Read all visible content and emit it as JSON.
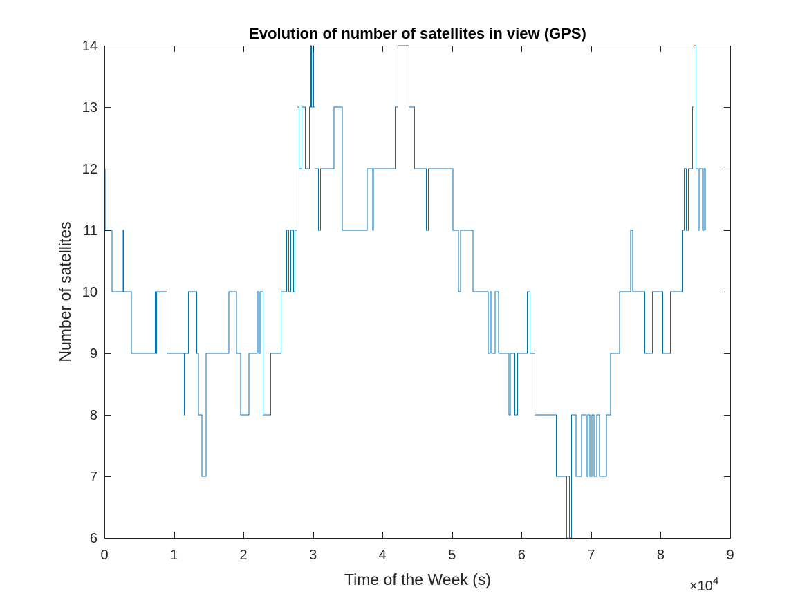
{
  "chart_data": {
    "type": "line",
    "title": "Evolution of number of satellites in view (GPS)",
    "xlabel": "Time of the Week (s)",
    "ylabel": "Number of satellites",
    "x_multiplier_label": "×10",
    "x_multiplier_exponent": "4",
    "xlim": [
      0,
      90000
    ],
    "ylim": [
      6,
      14
    ],
    "x_tick_values": [
      0,
      10000,
      20000,
      30000,
      40000,
      50000,
      60000,
      70000,
      80000,
      90000
    ],
    "x_tick_labels": [
      "0",
      "1",
      "2",
      "3",
      "4",
      "5",
      "6",
      "7",
      "8",
      "9"
    ],
    "y_tick_values": [
      6,
      7,
      8,
      9,
      10,
      11,
      12,
      13,
      14
    ],
    "y_tick_labels": [
      "6",
      "7",
      "8",
      "9",
      "10",
      "11",
      "12",
      "13",
      "14"
    ],
    "grid": false,
    "box": true,
    "line_color": "#0072bd",
    "series": [
      {
        "values_format": "step [time_s, satellites]",
        "points": [
          [
            0,
            12
          ],
          [
            80,
            11
          ],
          [
            1100,
            10
          ],
          [
            2700,
            11
          ],
          [
            2800,
            10
          ],
          [
            3200,
            10
          ],
          [
            3900,
            9
          ],
          [
            7300,
            10
          ],
          [
            7400,
            9
          ],
          [
            7500,
            10
          ],
          [
            9000,
            9
          ],
          [
            11500,
            8
          ],
          [
            11600,
            9
          ],
          [
            12100,
            10
          ],
          [
            13300,
            9
          ],
          [
            13500,
            8
          ],
          [
            14000,
            7
          ],
          [
            14600,
            9
          ],
          [
            17900,
            10
          ],
          [
            19000,
            9
          ],
          [
            19600,
            8
          ],
          [
            20800,
            9
          ],
          [
            22000,
            10
          ],
          [
            22200,
            9
          ],
          [
            22400,
            10
          ],
          [
            22800,
            8
          ],
          [
            23900,
            9
          ],
          [
            25400,
            10
          ],
          [
            26200,
            11
          ],
          [
            26500,
            10
          ],
          [
            26800,
            11
          ],
          [
            27200,
            10
          ],
          [
            27400,
            11
          ],
          [
            27700,
            13
          ],
          [
            28000,
            12
          ],
          [
            28400,
            13
          ],
          [
            28900,
            12
          ],
          [
            29500,
            13
          ],
          [
            29700,
            14
          ],
          [
            29800,
            13
          ],
          [
            30000,
            14
          ],
          [
            30100,
            13
          ],
          [
            30300,
            12
          ],
          [
            30800,
            11
          ],
          [
            31100,
            12
          ],
          [
            33000,
            13
          ],
          [
            34200,
            11
          ],
          [
            37800,
            12
          ],
          [
            38600,
            11
          ],
          [
            38700,
            12
          ],
          [
            41100,
            12
          ],
          [
            41800,
            13
          ],
          [
            42200,
            14
          ],
          [
            43800,
            13
          ],
          [
            44600,
            12
          ],
          [
            46300,
            11
          ],
          [
            46600,
            12
          ],
          [
            49600,
            12
          ],
          [
            50100,
            11
          ],
          [
            50900,
            10
          ],
          [
            51200,
            11
          ],
          [
            53000,
            10
          ],
          [
            55200,
            9
          ],
          [
            55500,
            10
          ],
          [
            55700,
            9
          ],
          [
            56200,
            10
          ],
          [
            56700,
            9
          ],
          [
            58200,
            8
          ],
          [
            58400,
            9
          ],
          [
            59000,
            8
          ],
          [
            59400,
            9
          ],
          [
            60800,
            10
          ],
          [
            61200,
            9
          ],
          [
            61900,
            8
          ],
          [
            65000,
            7
          ],
          [
            66500,
            6
          ],
          [
            66700,
            7
          ],
          [
            66900,
            6
          ],
          [
            67200,
            8
          ],
          [
            67800,
            7
          ],
          [
            68600,
            8
          ],
          [
            69300,
            7
          ],
          [
            69500,
            8
          ],
          [
            69800,
            7
          ],
          [
            70100,
            8
          ],
          [
            70400,
            7
          ],
          [
            70800,
            8
          ],
          [
            71200,
            7
          ],
          [
            72200,
            8
          ],
          [
            72800,
            9
          ],
          [
            74100,
            10
          ],
          [
            75700,
            11
          ],
          [
            76000,
            10
          ],
          [
            77700,
            9
          ],
          [
            78800,
            10
          ],
          [
            80300,
            9
          ],
          [
            81400,
            10
          ],
          [
            83100,
            11
          ],
          [
            83400,
            12
          ],
          [
            83700,
            11
          ],
          [
            84000,
            12
          ],
          [
            84600,
            13
          ],
          [
            84800,
            14
          ],
          [
            85100,
            12
          ],
          [
            85400,
            11
          ],
          [
            85500,
            12
          ],
          [
            86000,
            11
          ],
          [
            86200,
            12
          ],
          [
            86400,
            11
          ]
        ]
      }
    ]
  }
}
